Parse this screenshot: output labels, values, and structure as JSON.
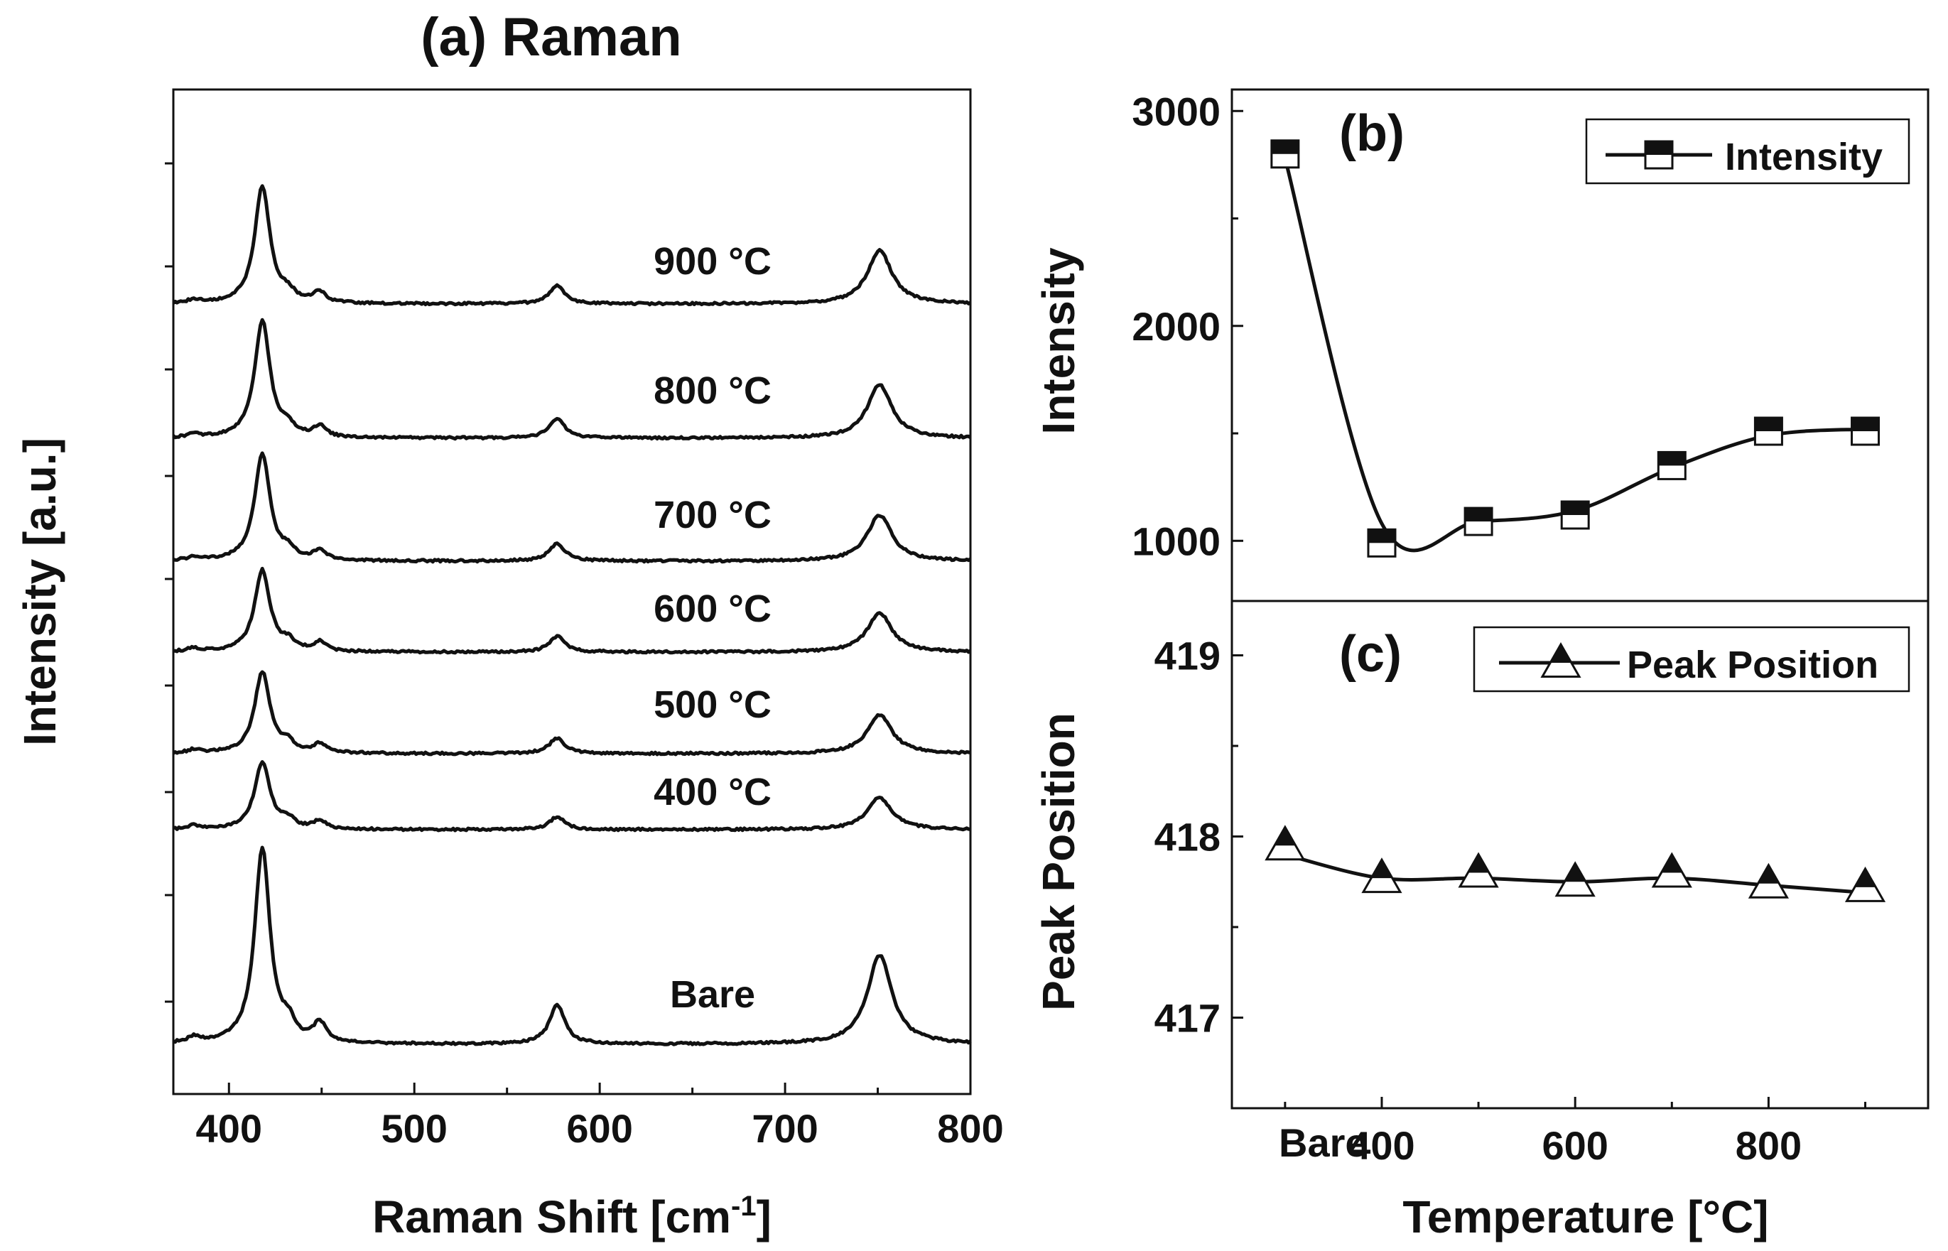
{
  "chart_data": [
    {
      "type": "line",
      "panel": "a",
      "title": "(a) Raman",
      "xlabel": "Raman Shift [cm-1]",
      "xlabel_main": "Raman Shift [cm",
      "xlabel_sup": "-1",
      "xlabel_close": "]",
      "ylabel": "Intensity [a.u.]",
      "xlim": [
        370,
        800
      ],
      "xticks": [
        400,
        500,
        600,
        700,
        800
      ],
      "peaks_cm1": [
        381,
        418,
        432,
        449,
        577,
        751
      ],
      "series": [
        {
          "name": "900 °C",
          "amplitudes": [
            5,
            165,
            12,
            15,
            25,
            75
          ]
        },
        {
          "name": "800 °C",
          "amplitudes": [
            5,
            165,
            12,
            15,
            28,
            75
          ]
        },
        {
          "name": "700 °C",
          "amplitudes": [
            5,
            150,
            12,
            13,
            25,
            65
          ]
        },
        {
          "name": "600 °C",
          "amplitudes": [
            5,
            115,
            12,
            13,
            22,
            55
          ]
        },
        {
          "name": "500 °C",
          "amplitudes": [
            5,
            115,
            12,
            13,
            22,
            55
          ]
        },
        {
          "name": "400 °C",
          "amplitudes": [
            5,
            95,
            12,
            12,
            18,
            45
          ]
        },
        {
          "name": "Bare",
          "amplitudes": [
            8,
            275,
            22,
            27,
            55,
            125
          ]
        }
      ]
    },
    {
      "type": "line",
      "panel": "b",
      "label": "(b)",
      "xlabel": "Temperature [°C]",
      "ylabel": "Intensity",
      "categories": [
        "Bare",
        "400",
        "500",
        "600",
        "700",
        "800",
        "900"
      ],
      "x": [
        300,
        400,
        500,
        600,
        700,
        800,
        900
      ],
      "values": [
        2800,
        990,
        1090,
        1120,
        1350,
        1510,
        1510
      ],
      "ylim": [
        720,
        3100
      ],
      "yticks": [
        1000,
        2000,
        3000
      ],
      "legend": {
        "label": "Intensity",
        "location": "top-right"
      },
      "marker": "half-filled square"
    },
    {
      "type": "line",
      "panel": "c",
      "label": "(c)",
      "xlabel": "Temperature [°C]",
      "ylabel": "Peak Position",
      "categories": [
        "Bare",
        "400",
        "500",
        "600",
        "700",
        "800",
        "900"
      ],
      "x": [
        300,
        400,
        500,
        600,
        700,
        800,
        900
      ],
      "values": [
        417.95,
        417.77,
        417.8,
        417.75,
        417.8,
        417.74,
        417.72
      ],
      "ylim": [
        416.5,
        419.3
      ],
      "yticks": [
        417,
        418,
        419
      ],
      "legend": {
        "label": "Peak Position",
        "location": "top-right"
      },
      "marker": "half-filled triangle"
    }
  ],
  "x_tick_labels": [
    "Bare",
    "400",
    "600",
    "800"
  ]
}
